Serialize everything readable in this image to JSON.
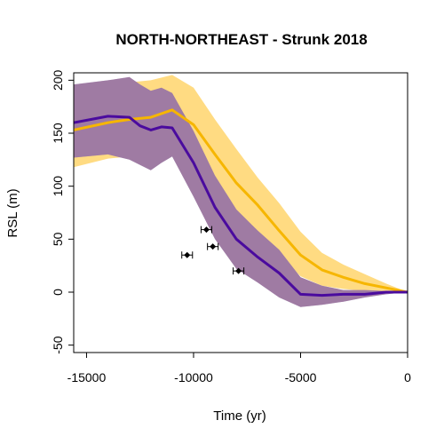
{
  "chart_data": {
    "type": "line",
    "title": "NORTH-NORTHEAST - Strunk 2018",
    "xlabel": "Time (yr)",
    "ylabel": "RSL (m)",
    "xlim": [
      -15600,
      0
    ],
    "ylim": [
      -57,
      207
    ],
    "x_ticks": [
      -15000,
      -10000,
      -5000,
      0
    ],
    "y_ticks": [
      -50,
      0,
      50,
      100,
      150,
      200
    ],
    "x_tick_labels": [
      "-15000",
      "-10000",
      "-5000",
      "0"
    ],
    "y_tick_labels": [
      "-50",
      "0",
      "50",
      "100",
      "150",
      "200"
    ],
    "grid": false,
    "legend": "none",
    "colors": {
      "orange_line": "#f6b600",
      "orange_band": "#ffdb82",
      "purple_line": "#4a0b9e",
      "purple_band": "#9d87cf",
      "overlap_band": "#a16d6d"
    },
    "series": [
      {
        "color_key": "orange",
        "x": [
          -15600,
          -14000,
          -13000,
          -12000,
          -11000,
          -10000,
          -9000,
          -8000,
          -7000,
          -6000,
          -5000,
          -4000,
          -3000,
          -2000,
          -1000,
          0
        ],
        "y": [
          153,
          160,
          163,
          165,
          172,
          158,
          130,
          103,
          82,
          58,
          35,
          21,
          14,
          8,
          4,
          0
        ],
        "lower": [
          118,
          126,
          128,
          131,
          137,
          123,
          100,
          76,
          56,
          35,
          15,
          6,
          3,
          1,
          0,
          0
        ],
        "upper": [
          190,
          196,
          198,
          200,
          205,
          193,
          163,
          135,
          108,
          84,
          57,
          37,
          26,
          17,
          8,
          0
        ]
      },
      {
        "color_key": "purple",
        "x": [
          -15600,
          -14000,
          -13000,
          -12500,
          -12000,
          -11500,
          -11000,
          -10000,
          -9000,
          -8000,
          -7000,
          -6000,
          -5000,
          -4000,
          -3000,
          -2000,
          -1000,
          0
        ],
        "y": [
          160,
          166,
          165,
          157,
          153,
          156,
          155,
          122,
          80,
          50,
          33,
          18,
          -2,
          -3,
          -2,
          -2,
          0,
          0
        ],
        "lower": [
          127,
          130,
          125,
          120,
          115,
          122,
          128,
          90,
          50,
          22,
          9,
          -5,
          -14,
          -12,
          -9,
          -5,
          -2,
          0
        ],
        "upper": [
          196,
          200,
          203,
          196,
          190,
          193,
          188,
          152,
          110,
          78,
          58,
          40,
          14,
          6,
          2,
          2,
          1,
          0
        ]
      }
    ],
    "observations": [
      {
        "x": -10300,
        "y": 35,
        "xmin": -10550,
        "xmax": -10050
      },
      {
        "x": -9400,
        "y": 59,
        "xmin": -9650,
        "xmax": -9150
      },
      {
        "x": -9100,
        "y": 43,
        "xmin": -9350,
        "xmax": -8850
      },
      {
        "x": -7900,
        "y": 20,
        "xmin": -8150,
        "xmax": -7650
      }
    ]
  }
}
